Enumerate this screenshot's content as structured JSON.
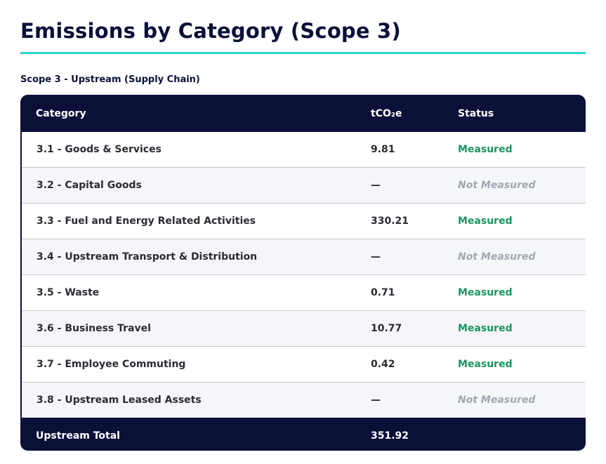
{
  "page": {
    "title": "Emissions by Category (Scope 3)",
    "section_label": "Scope 3 - Upstream (Supply Chain)"
  },
  "table": {
    "headers": {
      "category": "Category",
      "value": "tCO₂e",
      "status": "Status"
    },
    "rows": [
      {
        "category": "3.1 - Goods & Services",
        "value": "9.81",
        "status": "Measured"
      },
      {
        "category": "3.2 - Capital Goods",
        "value": "—",
        "status": "Not Measured"
      },
      {
        "category": "3.3 - Fuel and Energy Related Activities",
        "value": "330.21",
        "status": "Measured"
      },
      {
        "category": "3.4 - Upstream Transport & Distribution",
        "value": "—",
        "status": "Not Measured"
      },
      {
        "category": "3.5 - Waste",
        "value": "0.71",
        "status": "Measured"
      },
      {
        "category": "3.6 - Business Travel",
        "value": "10.77",
        "status": "Measured"
      },
      {
        "category": "3.7 - Employee Commuting",
        "value": "0.42",
        "status": "Measured"
      },
      {
        "category": "3.8 - Upstream Leased Assets",
        "value": "—",
        "status": "Not Measured"
      }
    ],
    "total": {
      "label": "Upstream Total",
      "value": "351.92"
    }
  },
  "colors": {
    "navy": "#0b1039",
    "accent_teal": "#2fd3cc",
    "measured_green": "#1a9660",
    "not_measured_gray": "#a3a7b3"
  }
}
